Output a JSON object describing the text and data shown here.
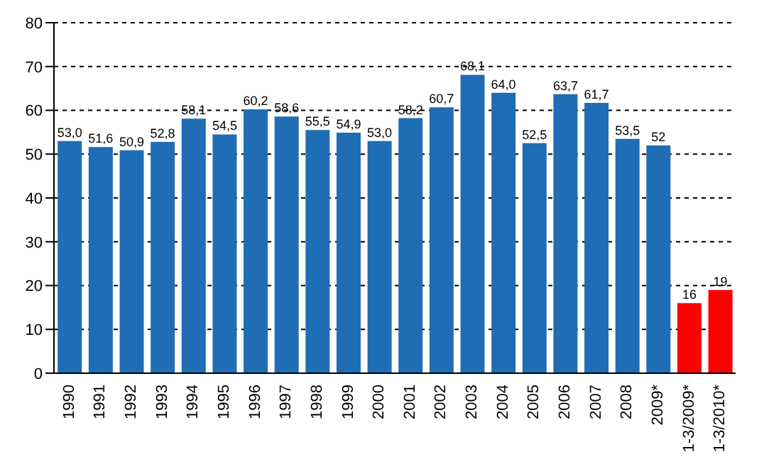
{
  "chart_data": {
    "type": "bar",
    "categories": [
      "1990",
      "1991",
      "1992",
      "1993",
      "1994",
      "1995",
      "1996",
      "1997",
      "1998",
      "1999",
      "2000",
      "2001",
      "2002",
      "2003",
      "2004",
      "2005",
      "2006",
      "2007",
      "2008",
      "2009*",
      "1-3/2009*",
      "1-3/2010*"
    ],
    "values": [
      53.0,
      51.6,
      50.9,
      52.8,
      58.1,
      54.5,
      60.2,
      58.6,
      55.5,
      54.9,
      53.0,
      58.2,
      60.7,
      68.1,
      64.0,
      52.5,
      63.7,
      61.7,
      53.5,
      52,
      16,
      19
    ],
    "value_labels": [
      "53,0",
      "51,6",
      "50,9",
      "52,8",
      "58,1",
      "54,5",
      "60,2",
      "58,6",
      "55,5",
      "54,9",
      "53,0",
      "58,2",
      "60,7",
      "68,1",
      "64,0",
      "52,5",
      "63,7",
      "61,7",
      "53,5",
      "52",
      "16",
      "19"
    ],
    "colors": [
      "#1f6db5",
      "#1f6db5",
      "#1f6db5",
      "#1f6db5",
      "#1f6db5",
      "#1f6db5",
      "#1f6db5",
      "#1f6db5",
      "#1f6db5",
      "#1f6db5",
      "#1f6db5",
      "#1f6db5",
      "#1f6db5",
      "#1f6db5",
      "#1f6db5",
      "#1f6db5",
      "#1f6db5",
      "#1f6db5",
      "#1f6db5",
      "#1f6db5",
      "#ff0000",
      "#ff0000"
    ],
    "ylim": [
      0,
      80
    ],
    "yticks": [
      0,
      10,
      20,
      30,
      40,
      50,
      60,
      70,
      80
    ],
    "grid": "y",
    "line_style": "dashed"
  }
}
